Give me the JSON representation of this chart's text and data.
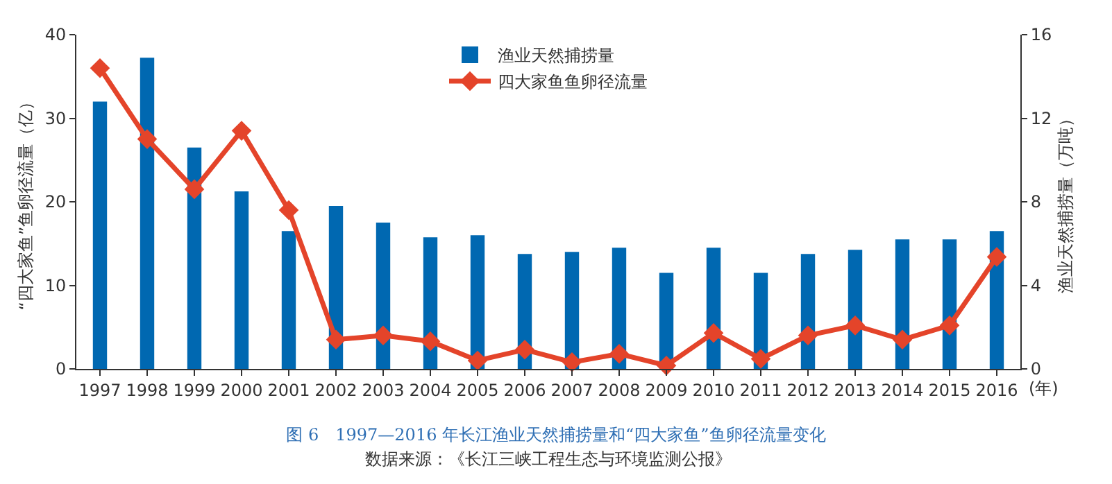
{
  "chart_data": {
    "type": "bar",
    "title": "图 6　1997—2016 年长江渔业天然捕捞量和“四大家鱼”鱼卵径流量变化",
    "annotations": [
      "数据来源：《长江三峡工程生态与环境监测公报》"
    ],
    "xlabel": "(年)",
    "ylabel": "“四大家鱼”鱼卵径流量（亿）",
    "y2label": "渔业天然捕捞量（万吨）",
    "categories": [
      "1997",
      "1998",
      "1999",
      "2000",
      "2001",
      "2002",
      "2003",
      "2004",
      "2005",
      "2006",
      "2007",
      "2008",
      "2009",
      "2010",
      "2011",
      "2012",
      "2013",
      "2014",
      "2015",
      "2016"
    ],
    "series": [
      {
        "name": "渔业天然捕捞量",
        "axis": "y2",
        "color": "#0068b1",
        "values": [
          12.8,
          14.9,
          10.6,
          8.5,
          6.6,
          7.8,
          7.0,
          6.3,
          6.4,
          5.5,
          5.6,
          5.8,
          4.6,
          5.8,
          4.6,
          5.5,
          5.7,
          6.2,
          6.2,
          6.6
        ]
      },
      {
        "name": "四大家鱼鱼卵径流量",
        "type": "line",
        "color": "#e4442a",
        "marker": "diamond",
        "values": [
          36,
          27.5,
          21.5,
          28.5,
          19,
          3.5,
          4,
          3.3,
          1,
          2.3,
          0.8,
          1.8,
          0.4,
          4.3,
          1.2,
          4.0,
          5.2,
          3.5,
          5.2,
          13.4
        ]
      }
    ],
    "ylim": [
      0,
      40
    ],
    "yticks": [
      0,
      10,
      20,
      30,
      40
    ],
    "y2lim": [
      0,
      16
    ],
    "y2ticks": [
      0,
      4,
      8,
      12,
      16
    ],
    "grid": false,
    "legend": "top"
  }
}
